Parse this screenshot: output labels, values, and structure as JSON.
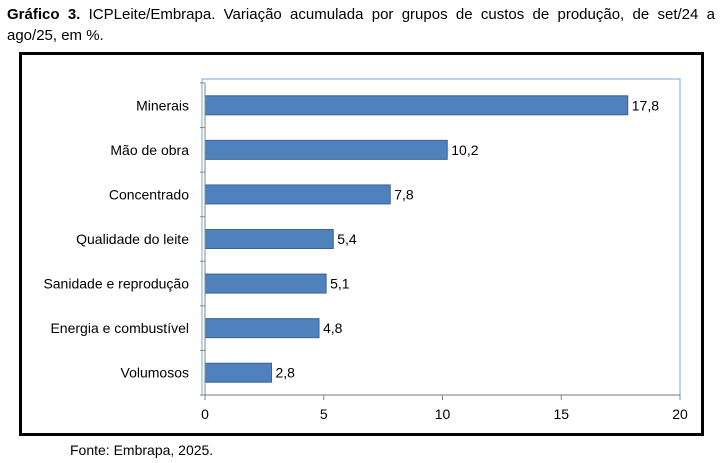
{
  "caption": {
    "label": "Gráfico 3.",
    "text": "ICPLeite/Embrapa. Variação acumulada por grupos de custos de produção, de set/24 a ago/25, em %."
  },
  "chart_data": {
    "type": "bar",
    "orientation": "horizontal",
    "categories": [
      "Minerais",
      "Mão de obra",
      "Concentrado",
      "Qualidade do leite",
      "Sanidade e reprodução",
      "Energia e combustível",
      "Volumosos"
    ],
    "values": [
      17.8,
      10.2,
      7.8,
      5.4,
      5.1,
      4.8,
      2.8
    ],
    "value_labels": [
      "17,8",
      "10,2",
      "7,8",
      "5,4",
      "5,1",
      "4,8",
      "2,8"
    ],
    "xlim": [
      0,
      20
    ],
    "xticks": [
      0,
      5,
      10,
      15,
      20
    ],
    "bar_color": "#4f81bd",
    "bar_edge_color": "#3a6496",
    "plot_border_color": "#8fb8d8",
    "grid": false,
    "legend": "none"
  },
  "source": "Fonte: Embrapa, 2025."
}
